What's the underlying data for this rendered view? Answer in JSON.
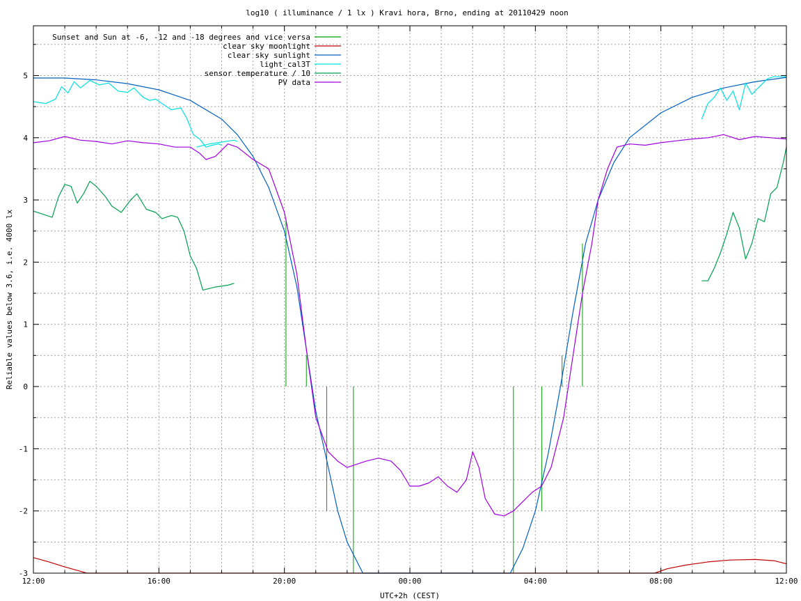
{
  "chart_data": {
    "type": "line",
    "title": "log10 ( illuminance / 1 lx ) Kravi hora, Brno, ending at 20110429 noon",
    "xlabel": "UTC+2h (CEST)",
    "ylabel": "Reliable values below 3.6, i.e. 4000 lx",
    "x_unit": "hours since 12:00",
    "xlim": [
      0,
      24
    ],
    "ylim": [
      -3,
      5.8
    ],
    "x_ticks": [
      {
        "x": 0,
        "label": "12:00"
      },
      {
        "x": 4,
        "label": "16:00"
      },
      {
        "x": 8,
        "label": "20:00"
      },
      {
        "x": 12,
        "label": "00:00"
      },
      {
        "x": 16,
        "label": "04:00"
      },
      {
        "x": 20,
        "label": "08:00"
      },
      {
        "x": 24,
        "label": "12:00"
      }
    ],
    "y_ticks": [
      -3,
      -2,
      -1,
      0,
      1,
      2,
      3,
      4,
      5
    ],
    "grid": true,
    "legend_position": "top-left",
    "series": [
      {
        "name": "Sunset and Sun at -6, -12 and -18 degrees and vice versa",
        "color": "#00a000",
        "style": "impulses",
        "points": [
          [
            8.05,
            2.7
          ],
          [
            8.7,
            0.5
          ],
          [
            9.35,
            -2.0
          ],
          [
            10.2,
            -3.0
          ],
          [
            15.3,
            -3.0
          ],
          [
            16.2,
            -2.0
          ],
          [
            16.85,
            0.5
          ],
          [
            17.5,
            2.3
          ]
        ],
        "baseline": 0
      },
      {
        "name": "clear sky moonlight",
        "color": "#c00000",
        "points": [
          [
            0.0,
            -2.75
          ],
          [
            0.5,
            -2.82
          ],
          [
            1.0,
            -2.9
          ],
          [
            1.5,
            -2.97
          ],
          [
            1.7,
            -3.0
          ],
          [
            19.8,
            -3.0
          ],
          [
            20.2,
            -2.93
          ],
          [
            20.8,
            -2.87
          ],
          [
            21.5,
            -2.82
          ],
          [
            22.2,
            -2.79
          ],
          [
            23.0,
            -2.78
          ],
          [
            23.6,
            -2.8
          ],
          [
            24.0,
            -2.85
          ]
        ]
      },
      {
        "name": "clear sky sunlight",
        "color": "#0060c0",
        "points": [
          [
            0.0,
            4.96
          ],
          [
            1.0,
            4.96
          ],
          [
            2.0,
            4.93
          ],
          [
            3.0,
            4.87
          ],
          [
            4.0,
            4.77
          ],
          [
            5.0,
            4.6
          ],
          [
            6.0,
            4.3
          ],
          [
            6.5,
            4.05
          ],
          [
            7.0,
            3.7
          ],
          [
            7.5,
            3.2
          ],
          [
            8.0,
            2.5
          ],
          [
            8.4,
            1.6
          ],
          [
            8.7,
            0.6
          ],
          [
            9.0,
            -0.4
          ],
          [
            9.4,
            -1.3
          ],
          [
            9.7,
            -2.0
          ],
          [
            10.0,
            -2.5
          ],
          [
            10.5,
            -3.0
          ],
          [
            15.2,
            -3.0
          ],
          [
            15.6,
            -2.6
          ],
          [
            16.0,
            -2.0
          ],
          [
            16.4,
            -1.1
          ],
          [
            16.8,
            0.0
          ],
          [
            17.2,
            1.2
          ],
          [
            17.6,
            2.3
          ],
          [
            18.0,
            3.0
          ],
          [
            18.5,
            3.6
          ],
          [
            19.0,
            4.0
          ],
          [
            20.0,
            4.4
          ],
          [
            21.0,
            4.65
          ],
          [
            22.0,
            4.8
          ],
          [
            23.0,
            4.9
          ],
          [
            24.0,
            4.97
          ]
        ]
      },
      {
        "name": "light_cal3T",
        "color": "#00e0e0",
        "segments": [
          [
            [
              0.0,
              4.58
            ],
            [
              0.4,
              4.55
            ],
            [
              0.7,
              4.62
            ],
            [
              0.9,
              4.82
            ],
            [
              1.1,
              4.72
            ],
            [
              1.3,
              4.9
            ],
            [
              1.5,
              4.8
            ],
            [
              1.8,
              4.92
            ],
            [
              2.1,
              4.85
            ],
            [
              2.4,
              4.88
            ],
            [
              2.7,
              4.75
            ],
            [
              3.0,
              4.73
            ],
            [
              3.2,
              4.8
            ],
            [
              3.5,
              4.65
            ],
            [
              3.7,
              4.6
            ],
            [
              3.9,
              4.62
            ],
            [
              4.1,
              4.55
            ],
            [
              4.4,
              4.45
            ],
            [
              4.7,
              4.48
            ],
            [
              4.9,
              4.3
            ],
            [
              5.1,
              4.05
            ],
            [
              5.3,
              3.98
            ],
            [
              5.5,
              3.85
            ],
            [
              5.7,
              3.88
            ],
            [
              5.9,
              3.9
            ],
            [
              6.0,
              3.88
            ]
          ],
          [
            [
              5.2,
              3.85
            ],
            [
              5.6,
              3.9
            ],
            [
              6.0,
              3.93
            ],
            [
              6.4,
              3.96
            ],
            [
              6.5,
              3.94
            ]
          ],
          [
            [
              21.3,
              4.3
            ],
            [
              21.5,
              4.55
            ],
            [
              21.7,
              4.65
            ],
            [
              21.9,
              4.8
            ],
            [
              22.1,
              4.6
            ],
            [
              22.3,
              4.75
            ],
            [
              22.5,
              4.45
            ],
            [
              22.7,
              4.88
            ],
            [
              22.9,
              4.7
            ],
            [
              23.2,
              4.85
            ],
            [
              23.4,
              4.95
            ],
            [
              23.6,
              4.98
            ],
            [
              23.8,
              4.98
            ],
            [
              24.0,
              4.98
            ]
          ]
        ]
      },
      {
        "name": "sensor temperature / 10",
        "color": "#00a050",
        "segments": [
          [
            [
              0.0,
              2.82
            ],
            [
              0.3,
              2.77
            ],
            [
              0.6,
              2.72
            ],
            [
              0.8,
              3.05
            ],
            [
              1.0,
              3.25
            ],
            [
              1.2,
              3.22
            ],
            [
              1.4,
              2.95
            ],
            [
              1.6,
              3.1
            ],
            [
              1.8,
              3.3
            ],
            [
              2.0,
              3.22
            ],
            [
              2.3,
              3.05
            ],
            [
              2.5,
              2.9
            ],
            [
              2.8,
              2.8
            ],
            [
              3.1,
              3.0
            ],
            [
              3.3,
              3.1
            ],
            [
              3.6,
              2.85
            ],
            [
              3.9,
              2.8
            ],
            [
              4.1,
              2.7
            ],
            [
              4.4,
              2.75
            ],
            [
              4.6,
              2.72
            ],
            [
              4.8,
              2.5
            ],
            [
              5.0,
              2.1
            ],
            [
              5.2,
              1.9
            ],
            [
              5.4,
              1.55
            ],
            [
              5.8,
              1.6
            ],
            [
              6.2,
              1.63
            ],
            [
              6.4,
              1.66
            ]
          ],
          [
            [
              21.3,
              1.7
            ],
            [
              21.5,
              1.7
            ],
            [
              21.7,
              1.9
            ],
            [
              21.9,
              2.15
            ],
            [
              22.1,
              2.45
            ],
            [
              22.3,
              2.8
            ],
            [
              22.5,
              2.55
            ],
            [
              22.7,
              2.05
            ],
            [
              22.9,
              2.3
            ],
            [
              23.1,
              2.7
            ],
            [
              23.3,
              2.65
            ],
            [
              23.5,
              3.1
            ],
            [
              23.7,
              3.2
            ],
            [
              23.9,
              3.6
            ],
            [
              24.0,
              3.85
            ]
          ]
        ]
      },
      {
        "name": "PV data",
        "color": "#a000e0",
        "points": [
          [
            0.0,
            3.92
          ],
          [
            0.5,
            3.95
          ],
          [
            1.0,
            4.02
          ],
          [
            1.5,
            3.96
          ],
          [
            2.0,
            3.94
          ],
          [
            2.5,
            3.9
          ],
          [
            3.0,
            3.95
          ],
          [
            3.5,
            3.92
          ],
          [
            4.0,
            3.9
          ],
          [
            4.5,
            3.85
          ],
          [
            5.0,
            3.85
          ],
          [
            5.3,
            3.75
          ],
          [
            5.5,
            3.65
          ],
          [
            5.8,
            3.7
          ],
          [
            6.2,
            3.9
          ],
          [
            6.5,
            3.85
          ],
          [
            7.0,
            3.65
          ],
          [
            7.5,
            3.5
          ],
          [
            8.0,
            2.8
          ],
          [
            8.4,
            1.8
          ],
          [
            8.7,
            0.6
          ],
          [
            9.0,
            -0.5
          ],
          [
            9.4,
            -1.05
          ],
          [
            9.7,
            -1.2
          ],
          [
            10.0,
            -1.3
          ],
          [
            10.3,
            -1.25
          ],
          [
            10.6,
            -1.2
          ],
          [
            11.0,
            -1.15
          ],
          [
            11.4,
            -1.2
          ],
          [
            11.7,
            -1.35
          ],
          [
            12.0,
            -1.6
          ],
          [
            12.3,
            -1.6
          ],
          [
            12.6,
            -1.55
          ],
          [
            12.9,
            -1.45
          ],
          [
            13.2,
            -1.6
          ],
          [
            13.5,
            -1.7
          ],
          [
            13.8,
            -1.5
          ],
          [
            14.0,
            -1.05
          ],
          [
            14.2,
            -1.3
          ],
          [
            14.4,
            -1.8
          ],
          [
            14.7,
            -2.05
          ],
          [
            15.0,
            -2.08
          ],
          [
            15.3,
            -2.0
          ],
          [
            15.6,
            -1.85
          ],
          [
            15.9,
            -1.7
          ],
          [
            16.2,
            -1.6
          ],
          [
            16.5,
            -1.3
          ],
          [
            16.9,
            -0.5
          ],
          [
            17.2,
            0.5
          ],
          [
            17.5,
            1.5
          ],
          [
            17.8,
            2.3
          ],
          [
            18.0,
            3.0
          ],
          [
            18.3,
            3.5
          ],
          [
            18.6,
            3.85
          ],
          [
            19.0,
            3.9
          ],
          [
            19.5,
            3.88
          ],
          [
            20.0,
            3.92
          ],
          [
            20.5,
            3.95
          ],
          [
            21.0,
            3.98
          ],
          [
            21.5,
            4.0
          ],
          [
            22.0,
            4.05
          ],
          [
            22.5,
            3.97
          ],
          [
            23.0,
            4.02
          ],
          [
            23.5,
            4.0
          ],
          [
            24.0,
            3.98
          ]
        ]
      }
    ]
  }
}
